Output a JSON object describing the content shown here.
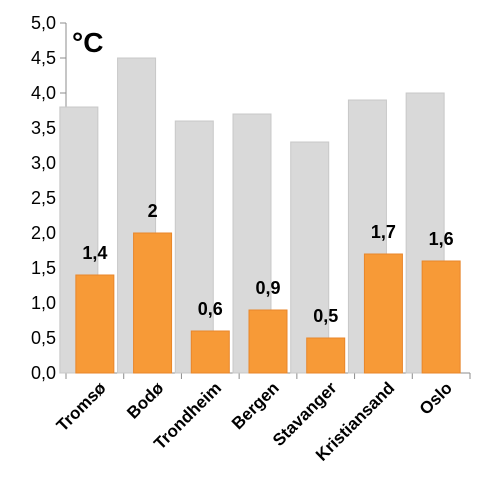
{
  "chart_data": {
    "type": "bar",
    "unit_label": "°C",
    "categories": [
      "Tromsø",
      "Bodø",
      "Trondheim",
      "Bergen",
      "Stavanger",
      "Kristiansand",
      "Oslo"
    ],
    "series": [
      {
        "values": [
          3.8,
          4.5,
          3.6,
          3.7,
          3.3,
          3.9,
          4.0
        ],
        "color": "#d9d9d9",
        "data_labels": false
      },
      {
        "values": [
          1.4,
          2.0,
          0.6,
          0.9,
          0.5,
          1.7,
          1.6
        ],
        "color": "#f79a37",
        "data_labels": true
      }
    ],
    "data_label_texts": [
      "1,4",
      "2",
      "0,6",
      "0,9",
      "0,5",
      "1,7",
      "1,6"
    ],
    "yticks": [
      0,
      0.5,
      1.0,
      1.5,
      2.0,
      2.5,
      3.0,
      3.5,
      4.0,
      4.5,
      5.0
    ],
    "ytick_labels": [
      "0,0",
      "0,5",
      "1,0",
      "1,5",
      "2,0",
      "2,5",
      "3,0",
      "3,5",
      "4,0",
      "4,5",
      "5,0"
    ],
    "ylim": [
      0,
      5
    ],
    "grid": false,
    "legend": "none"
  }
}
